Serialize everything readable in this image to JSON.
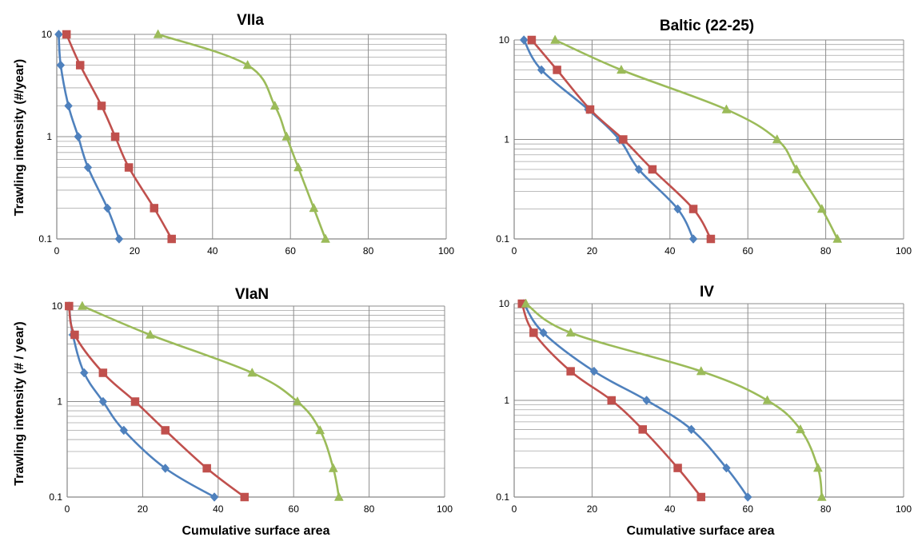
{
  "figure": {
    "ylabel_top": "Trawling intensity (#/year)",
    "ylabel_bottom": "Trawling intensity (# / year)",
    "xlabel_left": "Cumulative surface area",
    "xlabel_right": "Cumulative surface area"
  },
  "series_colors": [
    "#4F81BD",
    "#C0504D",
    "#9BBB59"
  ],
  "series_markers": [
    "diamond",
    "square",
    "triangle"
  ],
  "chart_data": [
    {
      "type": "line",
      "title": "VIIa",
      "xlabel": "",
      "ylabel": "Trawling intensity (#/year)",
      "xlim": [
        0,
        100
      ],
      "ylim": [
        0.1,
        10
      ],
      "yscale": "log",
      "grid": true,
      "x_ticks": [
        "0",
        "20",
        "40",
        "60",
        "80",
        "100"
      ],
      "y_ticks": [
        "0.1",
        "1",
        "10"
      ],
      "series": [
        {
          "x": [
            0.5,
            1.0,
            3.0,
            5.5,
            8.0,
            13.0,
            16.0
          ],
          "y": [
            10,
            5,
            2,
            1,
            0.5,
            0.2,
            0.1
          ]
        },
        {
          "x": [
            2.5,
            6.0,
            11.5,
            15.0,
            18.5,
            25.0,
            29.5
          ],
          "y": [
            10,
            5,
            2,
            1,
            0.5,
            0.2,
            0.1
          ]
        },
        {
          "x": [
            26.0,
            49.0,
            56.0,
            59.0,
            62.0,
            66.0,
            69.0
          ],
          "y": [
            10,
            5,
            2,
            1,
            0.5,
            0.2,
            0.1
          ]
        }
      ]
    },
    {
      "type": "line",
      "title": "Baltic (22-25)",
      "xlabel": "",
      "ylabel": "",
      "xlim": [
        0,
        100
      ],
      "ylim": [
        0.1,
        10
      ],
      "yscale": "log",
      "grid": true,
      "x_ticks": [
        "0",
        "20",
        "40",
        "60",
        "80",
        "100"
      ],
      "y_ticks": [
        "0.1",
        "1",
        "10"
      ],
      "series": [
        {
          "x": [
            2.5,
            7.0,
            19.0,
            27.0,
            32.0,
            42.0,
            46.0
          ],
          "y": [
            10,
            5,
            2,
            1,
            0.5,
            0.2,
            0.1
          ]
        },
        {
          "x": [
            4.5,
            11.0,
            19.5,
            28.0,
            35.5,
            46.0,
            50.5
          ],
          "y": [
            10,
            5,
            2,
            1,
            0.5,
            0.2,
            0.1
          ]
        },
        {
          "x": [
            10.5,
            27.5,
            54.5,
            67.5,
            72.5,
            79.0,
            83.0
          ],
          "y": [
            10,
            5,
            2,
            1,
            0.5,
            0.2,
            0.1
          ]
        }
      ]
    },
    {
      "type": "line",
      "title": "VIaN",
      "xlabel": "Cumulative surface area",
      "ylabel": "Trawling intensity (# / year)",
      "xlim": [
        0,
        100
      ],
      "ylim": [
        0.1,
        10
      ],
      "yscale": "log",
      "grid": true,
      "x_ticks": [
        "0",
        "20",
        "40",
        "60",
        "80",
        "100"
      ],
      "y_ticks": [
        "0.1",
        "1",
        "10"
      ],
      "series": [
        {
          "x": [
            0.5,
            1.5,
            4.5,
            9.5,
            15.0,
            26.0,
            39.0
          ],
          "y": [
            10,
            5,
            2,
            1,
            0.5,
            0.2,
            0.1
          ]
        },
        {
          "x": [
            0.5,
            2.0,
            9.5,
            18.0,
            26.0,
            37.0,
            47.0
          ],
          "y": [
            10,
            5,
            2,
            1,
            0.5,
            0.2,
            0.1
          ]
        },
        {
          "x": [
            4.0,
            22.0,
            49.0,
            61.0,
            67.0,
            70.5,
            72.0
          ],
          "y": [
            10,
            5,
            2,
            1,
            0.5,
            0.2,
            0.1
          ]
        }
      ]
    },
    {
      "type": "line",
      "title": "IV",
      "xlabel": "Cumulative surface area",
      "ylabel": "",
      "xlim": [
        0,
        100
      ],
      "ylim": [
        0.1,
        10
      ],
      "yscale": "log",
      "grid": true,
      "x_ticks": [
        "0",
        "20",
        "40",
        "60",
        "80",
        "100"
      ],
      "y_ticks": [
        "0.1",
        "1",
        "10"
      ],
      "series": [
        {
          "x": [
            2.5,
            7.5,
            20.5,
            34.0,
            45.5,
            54.5,
            60.0
          ],
          "y": [
            10,
            5,
            2,
            1,
            0.5,
            0.2,
            0.1
          ]
        },
        {
          "x": [
            2.0,
            5.0,
            14.5,
            25.0,
            33.0,
            42.0,
            48.0
          ],
          "y": [
            10,
            5,
            2,
            1,
            0.5,
            0.2,
            0.1
          ]
        },
        {
          "x": [
            3.0,
            14.5,
            48.0,
            65.0,
            73.5,
            78.0,
            79.0
          ],
          "y": [
            10,
            5,
            2,
            1,
            0.5,
            0.2,
            0.1
          ]
        }
      ]
    }
  ]
}
